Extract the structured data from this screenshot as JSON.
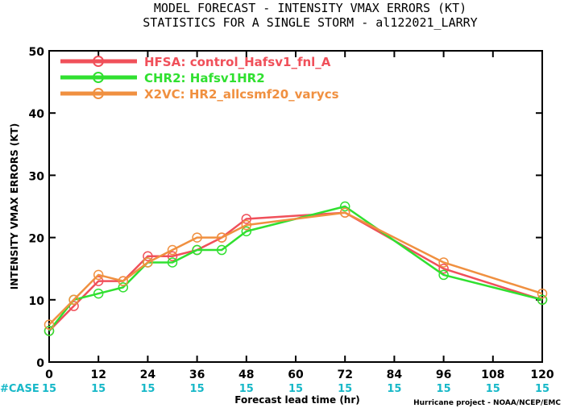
{
  "titles": {
    "line1": "MODEL FORECAST - INTENSITY VMAX ERRORS (KT)",
    "line2": "STATISTICS FOR A SINGLE STORM - al122021_LARRY"
  },
  "case_row": {
    "label": "#CASE",
    "counts": [
      "15",
      "15",
      "15",
      "15",
      "15",
      "15",
      "15",
      "15",
      "15",
      "15",
      "15"
    ]
  },
  "credit": "Hurricane project - NOAA/NCEP/EMC",
  "chart_data": {
    "type": "line",
    "xlabel": "Forecast lead time (hr)",
    "ylabel": "INTENSITY VMAX ERRORS (KT)",
    "xlim": [
      0,
      120
    ],
    "ylim": [
      0,
      50
    ],
    "xticks": [
      0,
      12,
      24,
      36,
      48,
      60,
      72,
      84,
      96,
      108,
      120
    ],
    "yticks": [
      0,
      10,
      20,
      30,
      40,
      50
    ],
    "grid": false,
    "legend_position": "top-left",
    "series": [
      {
        "name": "HFSA: control_Hafsv1_fnl_A",
        "color": "#f0505a",
        "x": [
          0,
          6,
          12,
          18,
          24,
          30,
          36,
          42,
          48,
          72,
          96,
          120
        ],
        "y": [
          5,
          9,
          13,
          13,
          17,
          17,
          18,
          20,
          23,
          24,
          15,
          10
        ]
      },
      {
        "name": "CHR2: Hafsv1HR2",
        "color": "#30e030",
        "x": [
          0,
          6,
          12,
          18,
          24,
          30,
          36,
          42,
          48,
          72,
          96,
          120
        ],
        "y": [
          5,
          10,
          11,
          12,
          16,
          16,
          18,
          18,
          21,
          25,
          14,
          10
        ]
      },
      {
        "name": "X2VC: HR2_allcsmf20_varycs",
        "color": "#f09040",
        "x": [
          0,
          6,
          12,
          18,
          24,
          30,
          36,
          42,
          48,
          72,
          96,
          120
        ],
        "y": [
          6,
          10,
          14,
          13,
          16,
          18,
          20,
          20,
          22,
          24,
          16,
          11
        ]
      }
    ]
  }
}
